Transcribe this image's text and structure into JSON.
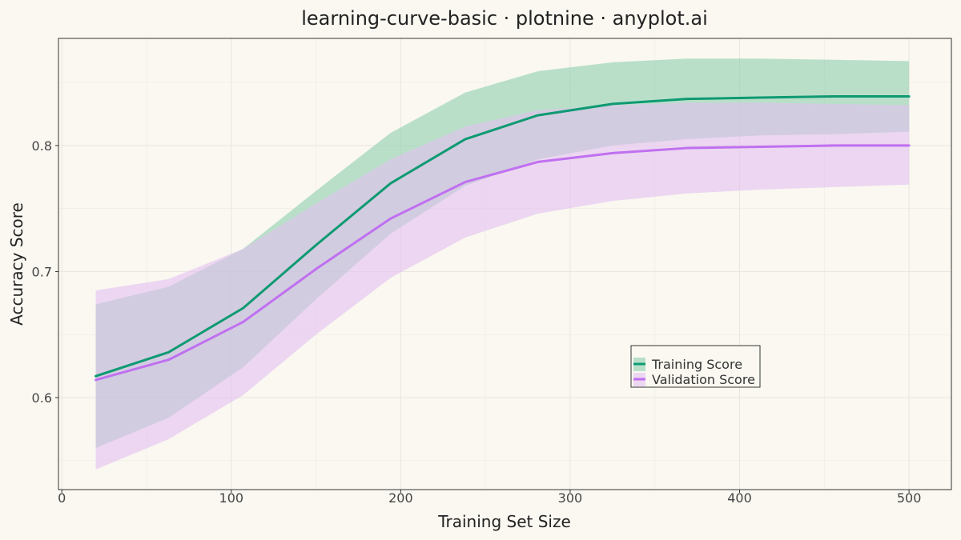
{
  "chart_data": {
    "type": "line",
    "title": "learning-curve-basic · plotnine · anyplot.ai",
    "xlabel": "Training Set Size",
    "ylabel": "Accuracy Score",
    "xlim": [
      -2,
      525
    ],
    "ylim": [
      0.527,
      0.885
    ],
    "x_ticks": [
      0,
      100,
      200,
      300,
      400,
      500
    ],
    "y_ticks": [
      0.6,
      0.7,
      0.8
    ],
    "x_tick_labels": [
      "0",
      "100",
      "200",
      "300",
      "400",
      "500"
    ],
    "y_tick_labels": [
      "0.6",
      "0.7",
      "0.8"
    ],
    "grid": true,
    "legend_position": "center-right",
    "x": [
      20,
      63,
      107,
      150,
      194,
      238,
      281,
      325,
      369,
      412,
      456,
      500
    ],
    "series": [
      {
        "name": "Training Score",
        "color": "#0E9A72",
        "fill_color": "#8ECFAF",
        "mean": [
          0.617,
          0.636,
          0.671,
          0.721,
          0.77,
          0.805,
          0.824,
          0.833,
          0.837,
          0.838,
          0.839,
          0.839
        ],
        "lower": [
          0.56,
          0.584,
          0.624,
          0.678,
          0.73,
          0.768,
          0.789,
          0.8,
          0.805,
          0.808,
          0.809,
          0.811
        ],
        "upper": [
          0.674,
          0.688,
          0.718,
          0.764,
          0.81,
          0.842,
          0.859,
          0.866,
          0.869,
          0.869,
          0.868,
          0.867
        ]
      },
      {
        "name": "Validation Score",
        "color": "#C070F0",
        "fill_color": "#E2C0F2",
        "mean": [
          0.614,
          0.63,
          0.66,
          0.702,
          0.742,
          0.771,
          0.787,
          0.794,
          0.798,
          0.799,
          0.8,
          0.8
        ],
        "lower": [
          0.543,
          0.567,
          0.602,
          0.65,
          0.695,
          0.727,
          0.746,
          0.756,
          0.762,
          0.765,
          0.767,
          0.769
        ],
        "upper": [
          0.685,
          0.694,
          0.718,
          0.754,
          0.789,
          0.815,
          0.828,
          0.832,
          0.834,
          0.834,
          0.833,
          0.832
        ]
      }
    ]
  }
}
